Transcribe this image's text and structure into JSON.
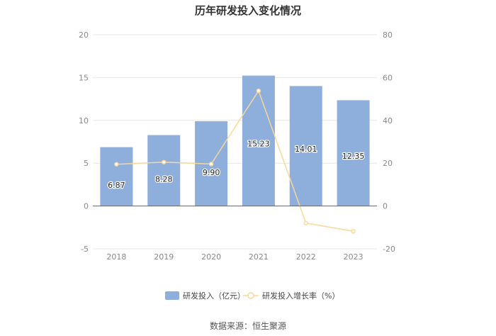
{
  "chart_data": {
    "type": "bar",
    "title": "历年研发投入变化情况",
    "categories": [
      "2018",
      "2019",
      "2020",
      "2021",
      "2022",
      "2023"
    ],
    "series": [
      {
        "name": "研发投入（亿元）",
        "type": "bar",
        "axis": "left",
        "values": [
          6.87,
          8.28,
          9.9,
          15.23,
          14.01,
          12.35
        ],
        "labels": [
          "6.87",
          "8.28",
          "9.90",
          "15.23",
          "14.01",
          "12.35"
        ],
        "color": "#8eaedb"
      },
      {
        "name": "研发投入增长率（%）",
        "type": "line",
        "axis": "right",
        "values": [
          19.5,
          20.5,
          19.6,
          53.8,
          -8.0,
          -11.8
        ],
        "color": "#f8d79a"
      }
    ],
    "y_left": {
      "ylim": [
        -5,
        20
      ],
      "ticks": [
        "-5",
        "0",
        "5",
        "10",
        "15",
        "20"
      ]
    },
    "y_right": {
      "ylim": [
        -20,
        80
      ],
      "ticks": [
        "-20",
        "0",
        "20",
        "40",
        "60",
        "80"
      ]
    },
    "grid": true,
    "legend": "bottom"
  },
  "source": "数据来源：恒生聚源"
}
